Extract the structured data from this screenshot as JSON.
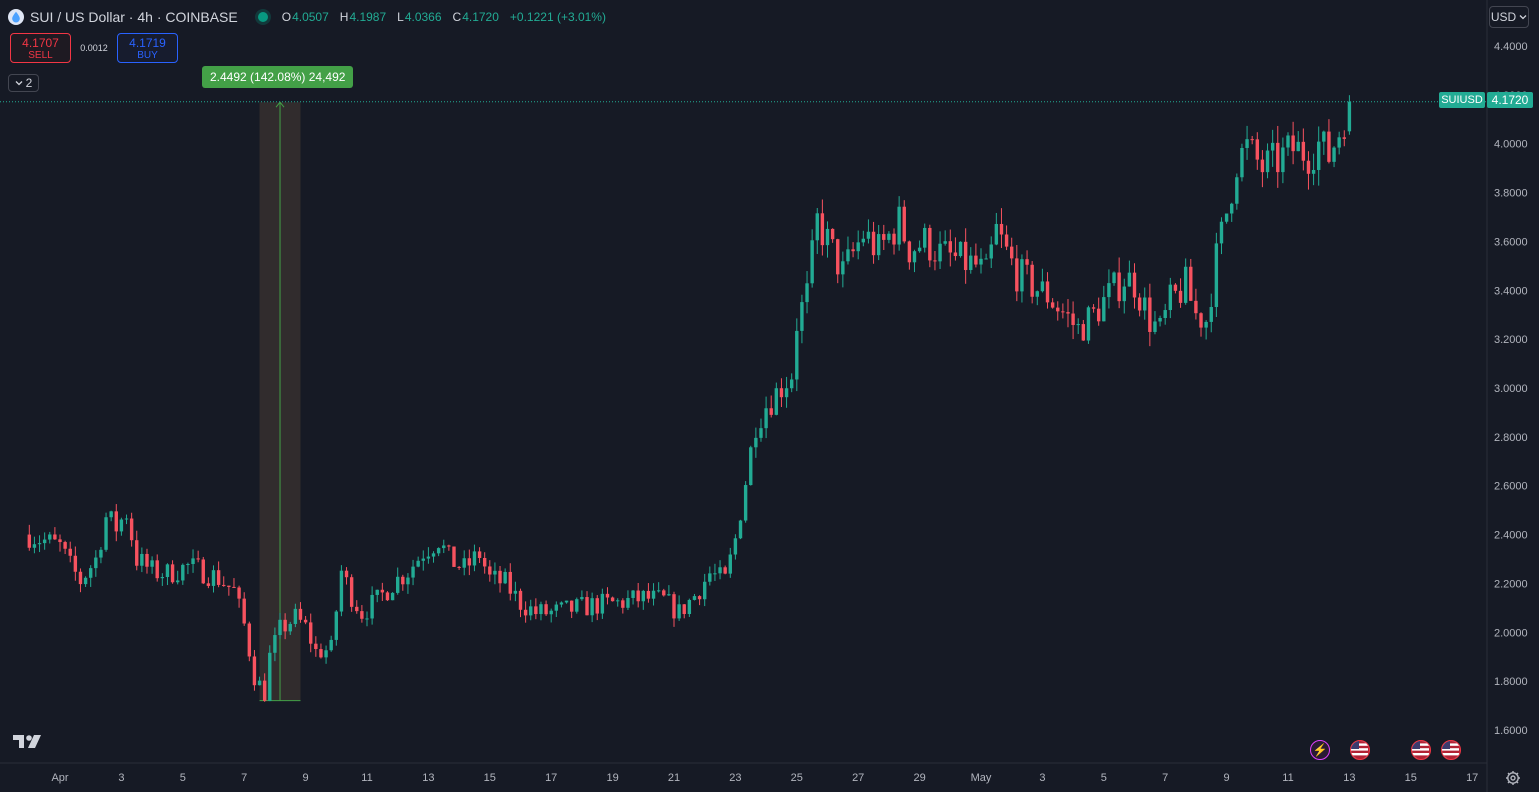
{
  "legend": {
    "title": "SUI / US Dollar · 4h · COINBASE",
    "open_label": "O",
    "open": "4.0507",
    "high_label": "H",
    "high": "4.1987",
    "low_label": "L",
    "low": "4.0366",
    "close_label": "C",
    "close": "4.1720",
    "change": "+0.1221 (+3.01%)"
  },
  "trade": {
    "sell_price": "4.1707",
    "sell_label": "SELL",
    "spread": "0.0012",
    "buy_price": "4.1719",
    "buy_label": "BUY"
  },
  "collapse_count": "2",
  "measure": {
    "label": "2.4492 (142.08%) 24,492",
    "from_price": 1.72,
    "to_price": 4.17
  },
  "currency": "USD",
  "last_price": {
    "symbol": "SUIUSD",
    "value": "4.1720"
  },
  "colors": {
    "up": "#22ab94",
    "down": "#f7525f",
    "background": "#161a25",
    "measure": "#43a047"
  },
  "icons": [
    "sui-logo-icon",
    "chevron-down-icon",
    "tradingview-logo-icon",
    "flash-event-icon",
    "us-flag-event-icon",
    "settings-gear-icon"
  ],
  "chart_data": {
    "type": "candlestick",
    "timeframe": "4h",
    "y_ticks": [
      "4.4000",
      "4.2000",
      "4.0000",
      "3.8000",
      "3.6000",
      "3.4000",
      "3.2000",
      "3.0000",
      "2.8000",
      "2.6000",
      "2.4000",
      "2.2000",
      "2.0000",
      "1.8000",
      "1.6000"
    ],
    "ylim": [
      1.6,
      4.4
    ],
    "x_ticks": [
      {
        "label": "Apr",
        "day": 1
      },
      {
        "label": "3",
        "day": 3
      },
      {
        "label": "5",
        "day": 5
      },
      {
        "label": "7",
        "day": 7
      },
      {
        "label": "9",
        "day": 9
      },
      {
        "label": "11",
        "day": 11
      },
      {
        "label": "13",
        "day": 13
      },
      {
        "label": "15",
        "day": 15
      },
      {
        "label": "17",
        "day": 17
      },
      {
        "label": "19",
        "day": 19
      },
      {
        "label": "21",
        "day": 21
      },
      {
        "label": "23",
        "day": 23
      },
      {
        "label": "25",
        "day": 25
      },
      {
        "label": "27",
        "day": 27
      },
      {
        "label": "29",
        "day": 29
      },
      {
        "label": "May",
        "day": 31
      },
      {
        "label": "3",
        "day": 33
      },
      {
        "label": "5",
        "day": 35
      },
      {
        "label": "7",
        "day": 37
      },
      {
        "label": "9",
        "day": 39
      },
      {
        "label": "11",
        "day": 41
      },
      {
        "label": "13",
        "day": 43
      },
      {
        "label": "15",
        "day": 45
      },
      {
        "label": "17",
        "day": 47
      }
    ],
    "anchors": [
      [
        "2025-03-31 00:00",
        2.4
      ],
      [
        "2025-04-01 00:00",
        2.35
      ],
      [
        "2025-04-01 08:00",
        2.27
      ],
      [
        "2025-04-01 16:00",
        2.21
      ],
      [
        "2025-04-02 04:00",
        2.3
      ],
      [
        "2025-04-02 12:00",
        2.47
      ],
      [
        "2025-04-02 20:00",
        2.43
      ],
      [
        "2025-04-03 04:00",
        2.49
      ],
      [
        "2025-04-03 12:00",
        2.3
      ],
      [
        "2025-04-04 00:00",
        2.25
      ],
      [
        "2025-04-04 12:00",
        2.24
      ],
      [
        "2025-04-05 04:00",
        2.27
      ],
      [
        "2025-04-05 16:00",
        2.25
      ],
      [
        "2025-04-06 04:00",
        2.22
      ],
      [
        "2025-04-06 16:00",
        2.17
      ],
      [
        "2025-04-07 00:00",
        2.03
      ],
      [
        "2025-04-07 08:00",
        1.82
      ],
      [
        "2025-04-07 16:00",
        1.75
      ],
      [
        "2025-04-07 20:00",
        1.9
      ],
      [
        "2025-04-08 04:00",
        2.01
      ],
      [
        "2025-04-08 16:00",
        2.06
      ],
      [
        "2025-04-09 00:00",
        2.02
      ],
      [
        "2025-04-09 08:00",
        1.92
      ],
      [
        "2025-04-09 20:00",
        1.93
      ],
      [
        "2025-04-10 04:00",
        2.25
      ],
      [
        "2025-04-10 12:00",
        2.15
      ],
      [
        "2025-04-10 20:00",
        2.08
      ],
      [
        "2025-04-11 08:00",
        2.13
      ],
      [
        "2025-04-11 20:00",
        2.2
      ],
      [
        "2025-04-12 08:00",
        2.25
      ],
      [
        "2025-04-12 20:00",
        2.33
      ],
      [
        "2025-04-13 08:00",
        2.38
      ],
      [
        "2025-04-13 16:00",
        2.3
      ],
      [
        "2025-04-14 04:00",
        2.26
      ],
      [
        "2025-04-14 16:00",
        2.32
      ],
      [
        "2025-04-15 00:00",
        2.22
      ],
      [
        "2025-04-15 12:00",
        2.2
      ],
      [
        "2025-04-16 00:00",
        2.12
      ],
      [
        "2025-04-16 12:00",
        2.08
      ],
      [
        "2025-04-17 00:00",
        2.08
      ],
      [
        "2025-04-17 12:00",
        2.09
      ],
      [
        "2025-04-18 08:00",
        2.11
      ],
      [
        "2025-04-19 04:00",
        2.12
      ],
      [
        "2025-04-20 00:00",
        2.14
      ],
      [
        "2025-04-20 16:00",
        2.13
      ],
      [
        "2025-04-21 04:00",
        2.08
      ],
      [
        "2025-04-21 16:00",
        2.15
      ],
      [
        "2025-04-22 04:00",
        2.24
      ],
      [
        "2025-04-22 16:00",
        2.21
      ],
      [
        "2025-04-23 00:00",
        2.38
      ],
      [
        "2025-04-23 08:00",
        2.62
      ],
      [
        "2025-04-23 16:00",
        2.86
      ],
      [
        "2025-04-24 00:00",
        2.93
      ],
      [
        "2025-04-24 08:00",
        2.98
      ],
      [
        "2025-04-24 20:00",
        3.06
      ],
      [
        "2025-04-25 00:00",
        3.27
      ],
      [
        "2025-04-25 08:00",
        3.38
      ],
      [
        "2025-04-25 16:00",
        3.68
      ],
      [
        "2025-04-26 00:00",
        3.6
      ],
      [
        "2025-04-26 12:00",
        3.47
      ],
      [
        "2025-04-26 20:00",
        3.55
      ],
      [
        "2025-04-27 04:00",
        3.63
      ],
      [
        "2025-04-27 16:00",
        3.56
      ],
      [
        "2025-04-28 08:00",
        3.68
      ],
      [
        "2025-04-28 16:00",
        3.57
      ],
      [
        "2025-04-29 04:00",
        3.6
      ],
      [
        "2025-04-29 16:00",
        3.55
      ],
      [
        "2025-04-30 08:00",
        3.52
      ],
      [
        "2025-04-30 20:00",
        3.5
      ],
      [
        "2025-05-01 04:00",
        3.46
      ],
      [
        "2025-05-01 12:00",
        3.64
      ],
      [
        "2025-05-01 20:00",
        3.55
      ],
      [
        "2025-05-02 04:00",
        3.47
      ],
      [
        "2025-05-02 16:00",
        3.42
      ],
      [
        "2025-05-03 04:00",
        3.38
      ],
      [
        "2025-05-03 16:00",
        3.31
      ],
      [
        "2025-05-04 04:00",
        3.24
      ],
      [
        "2025-05-04 16:00",
        3.3
      ],
      [
        "2025-05-05 04:00",
        3.38
      ],
      [
        "2025-05-05 16:00",
        3.45
      ],
      [
        "2025-05-06 00:00",
        3.43
      ],
      [
        "2025-05-06 12:00",
        3.28
      ],
      [
        "2025-05-06 20:00",
        3.23
      ],
      [
        "2025-05-07 04:00",
        3.35
      ],
      [
        "2025-05-07 16:00",
        3.42
      ],
      [
        "2025-05-08 00:00",
        3.3
      ],
      [
        "2025-05-08 08:00",
        3.28
      ],
      [
        "2025-05-08 16:00",
        3.53
      ],
      [
        "2025-05-09 00:00",
        3.72
      ],
      [
        "2025-05-09 08:00",
        3.93
      ],
      [
        "2025-05-09 16:00",
        3.98
      ],
      [
        "2025-05-10 04:00",
        3.9
      ],
      [
        "2025-05-10 16:00",
        3.93
      ],
      [
        "2025-05-11 04:00",
        3.98
      ],
      [
        "2025-05-11 16:00",
        3.96
      ],
      [
        "2025-05-12 00:00",
        4.0
      ],
      [
        "2025-05-12 08:00",
        3.95
      ],
      [
        "2025-05-12 16:00",
        4.05
      ],
      [
        "2025-05-13 00:00",
        4.17
      ]
    ]
  }
}
